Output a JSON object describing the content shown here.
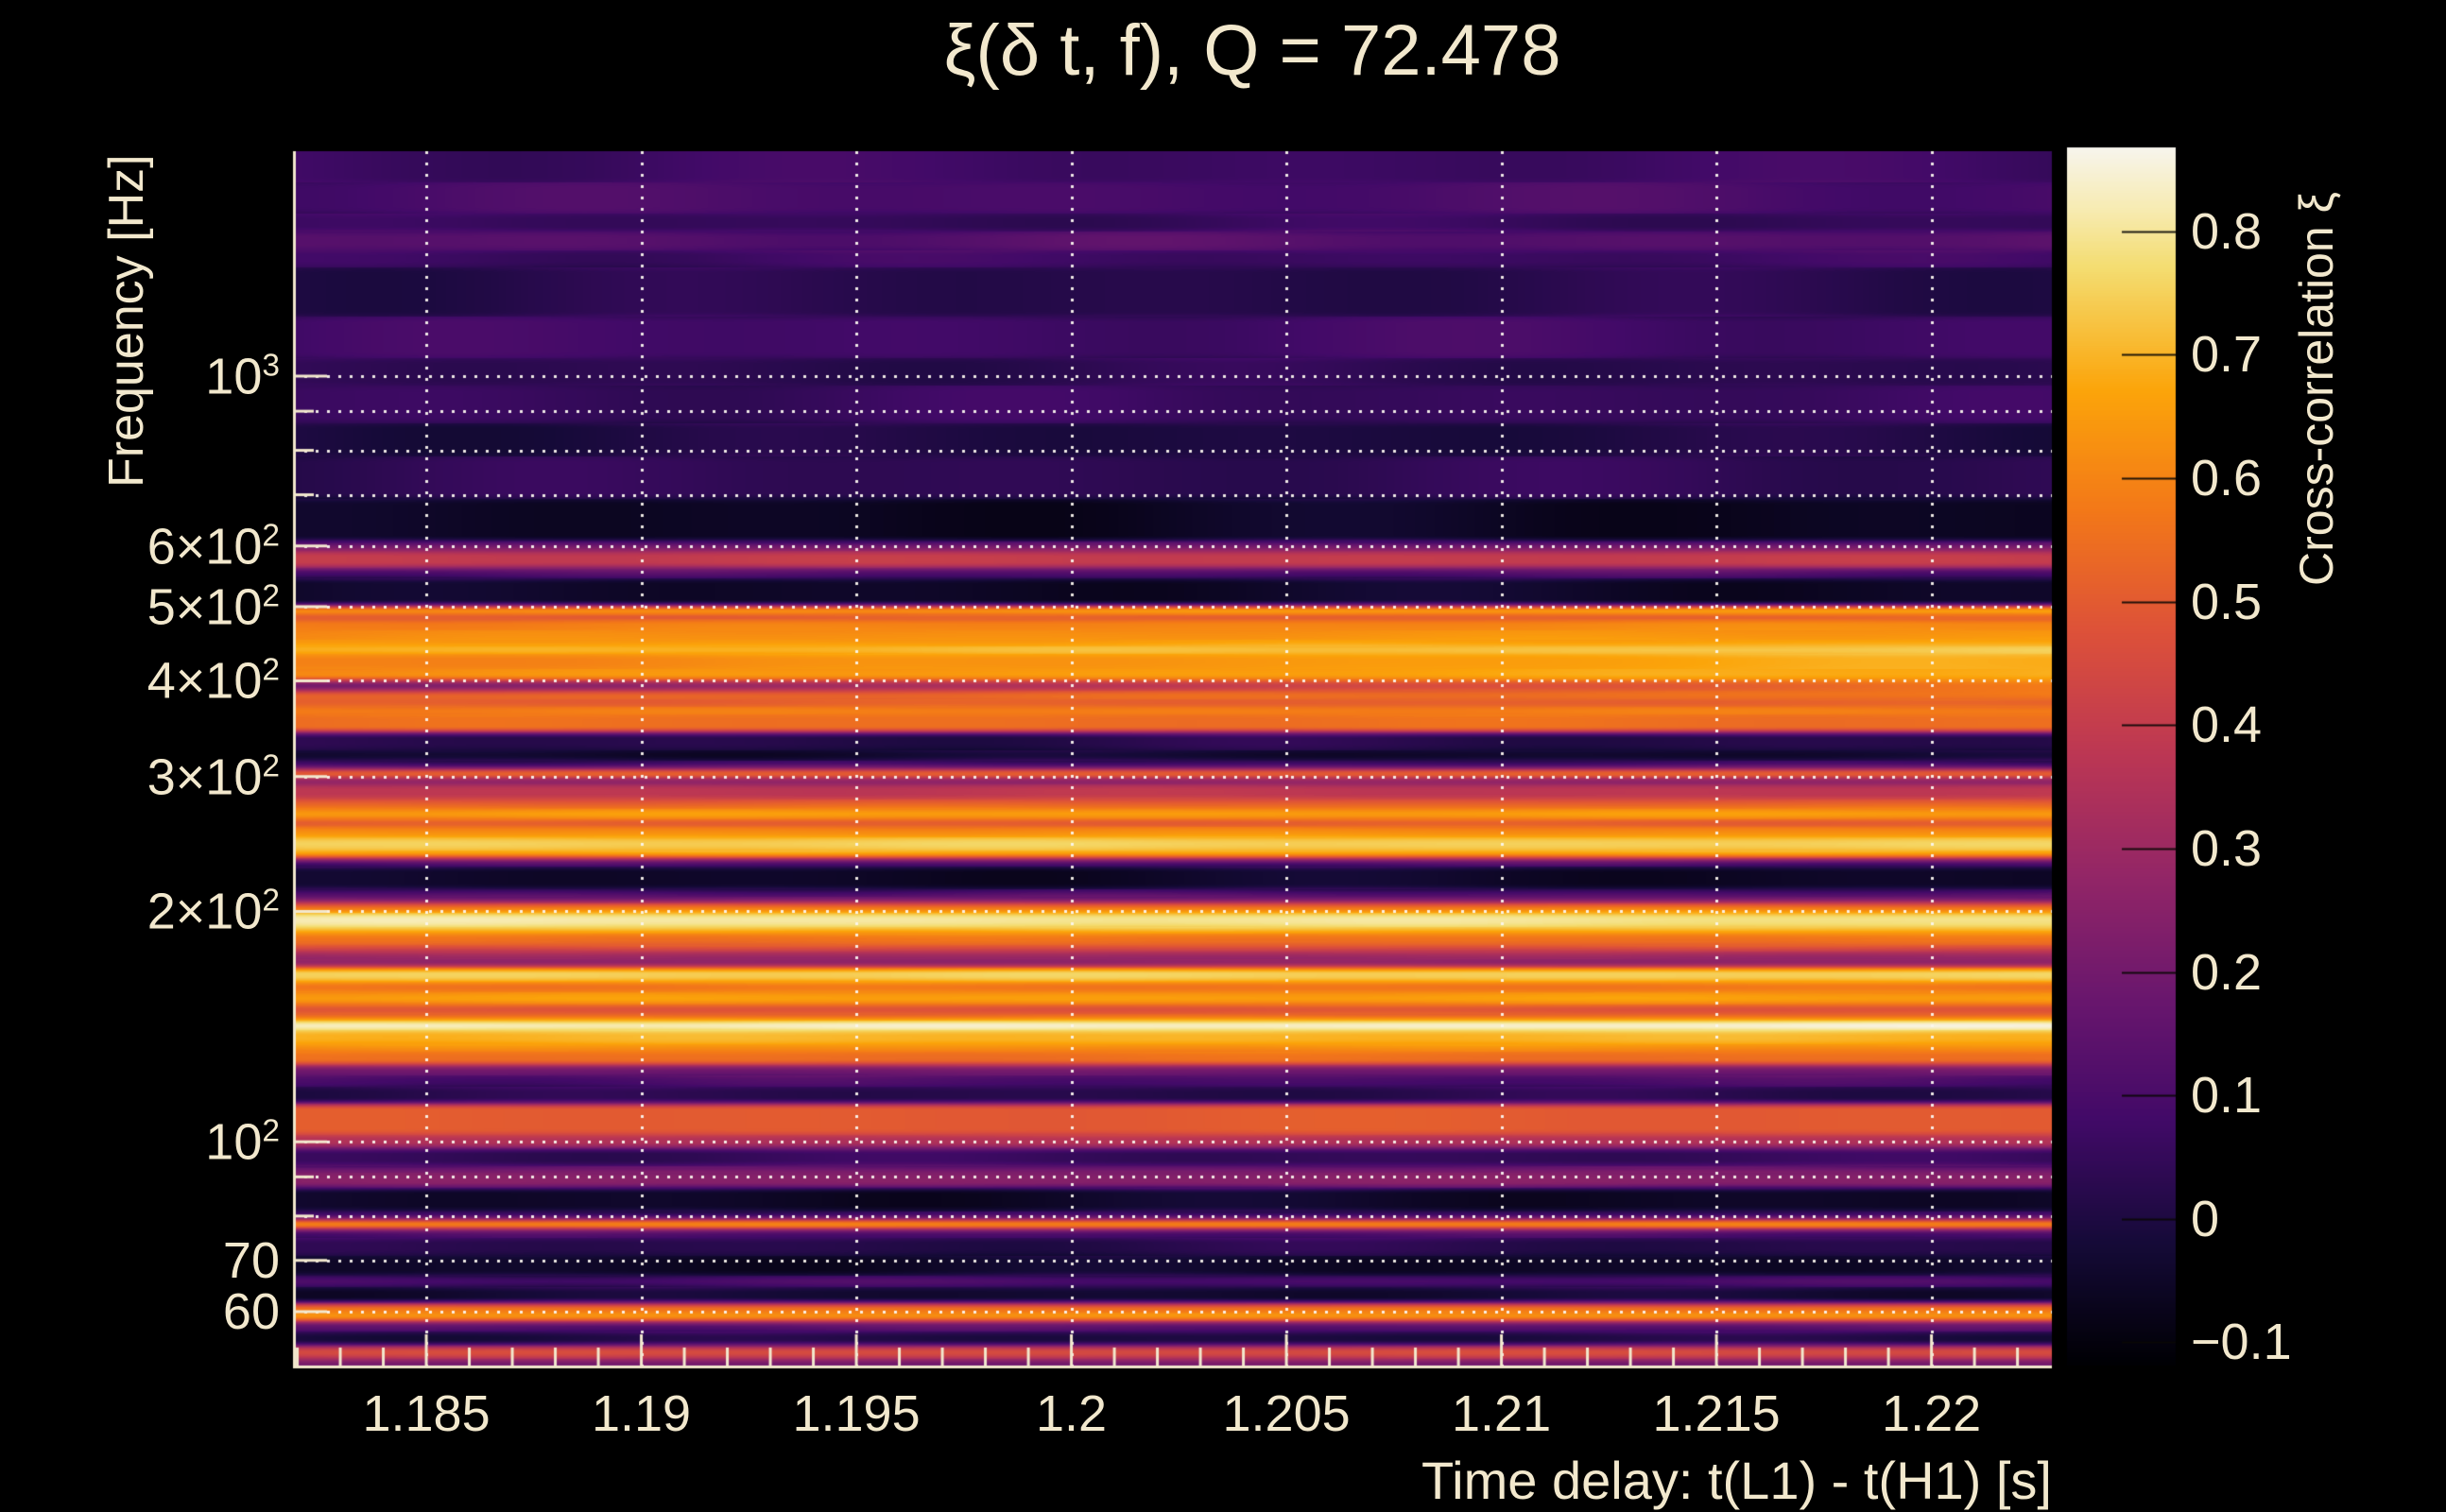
{
  "colors": {
    "background": "#000000",
    "text": "#f2e8cd",
    "grid_dotted": "#faf6ee",
    "colormap_low": "#000004",
    "colormap_mid": "#dd513a",
    "colormap_high": "#f7f5ee"
  },
  "chart_data": {
    "type": "heatmap",
    "title": "ξ(δ t, f), Q = 72.478",
    "q_value": 72.478,
    "xlabel": "Time delay: t(L1) - t(H1) [s]",
    "ylabel": "Frequency [Hz]",
    "colorbar_label": "Cross-correlation ξ",
    "x_range": [
      1.1819,
      1.2228
    ],
    "y_range_hz": [
      50.6,
      1967
    ],
    "y_scale": "log",
    "x_scale": "linear",
    "grid": "dotted",
    "color_range": [
      -0.118,
      0.868
    ],
    "colormap": "inferno-white-top",
    "x_ticks": [
      {
        "v": 1.185,
        "label": "1.185"
      },
      {
        "v": 1.19,
        "label": "1.19"
      },
      {
        "v": 1.195,
        "label": "1.195"
      },
      {
        "v": 1.2,
        "label": "1.2"
      },
      {
        "v": 1.205,
        "label": "1.205"
      },
      {
        "v": 1.21,
        "label": "1.21"
      },
      {
        "v": 1.215,
        "label": "1.215"
      },
      {
        "v": 1.22,
        "label": "1.22"
      }
    ],
    "x_minor_step": 0.001,
    "y_ticks": [
      {
        "v": 1000,
        "label": "10",
        "sup": "3"
      },
      {
        "v": 600,
        "label": "6×10",
        "sup": "2"
      },
      {
        "v": 500,
        "label": "5×10",
        "sup": "2"
      },
      {
        "v": 400,
        "label": "4×10",
        "sup": "2"
      },
      {
        "v": 300,
        "label": "3×10",
        "sup": "2"
      },
      {
        "v": 200,
        "label": "2×10",
        "sup": "2"
      },
      {
        "v": 100,
        "label": "10",
        "sup": "2"
      },
      {
        "v": 70,
        "label": "70",
        "sup": ""
      },
      {
        "v": 60,
        "label": "60",
        "sup": ""
      }
    ],
    "y_grid_hz": [
      60,
      70,
      80,
      90,
      100,
      200,
      300,
      400,
      500,
      600,
      700,
      800,
      900,
      1000
    ],
    "colorbar_ticks": [
      {
        "v": 0.8,
        "label": "0.8"
      },
      {
        "v": 0.7,
        "label": "0.7"
      },
      {
        "v": 0.6,
        "label": "0.6"
      },
      {
        "v": 0.5,
        "label": "0.5"
      },
      {
        "v": 0.4,
        "label": "0.4"
      },
      {
        "v": 0.3,
        "label": "0.3"
      },
      {
        "v": 0.2,
        "label": "0.2"
      },
      {
        "v": 0.1,
        "label": "0.1"
      },
      {
        "v": 0,
        "label": "0"
      },
      {
        "v": -0.1,
        "label": "−0.1"
      }
    ],
    "bands_format": [
      "f_high_hz",
      "f_low_hz",
      "xi",
      "x_gradient"
    ],
    "bands": [
      [
        1967,
        1790,
        0.07,
        0
      ],
      [
        1790,
        1630,
        0.1,
        0
      ],
      [
        1630,
        1545,
        0.05,
        0
      ],
      [
        1545,
        1460,
        0.13,
        0
      ],
      [
        1460,
        1387,
        0.07,
        0
      ],
      [
        1387,
        1196,
        0.02,
        0
      ],
      [
        1196,
        1056,
        0.08,
        0
      ],
      [
        1056,
        972,
        0.03,
        0
      ],
      [
        972,
        867,
        0.06,
        0
      ],
      [
        867,
        785,
        0.0,
        0
      ],
      [
        785,
        691,
        0.04,
        0
      ],
      [
        691,
        608,
        -0.06,
        0
      ],
      [
        608,
        591,
        0.2,
        0
      ],
      [
        591,
        562,
        0.4,
        0
      ],
      [
        562,
        545,
        0.12,
        0
      ],
      [
        545,
        502,
        -0.05,
        0
      ],
      [
        502,
        487,
        0.66,
        0.06
      ],
      [
        487,
        482,
        0.4,
        0
      ],
      [
        482,
        466,
        0.6,
        0.03
      ],
      [
        466,
        452,
        0.63,
        0.03
      ],
      [
        452,
        444,
        0.66,
        0.04
      ],
      [
        444,
        434,
        0.73,
        0.05
      ],
      [
        434,
        414,
        0.64,
        0.1
      ],
      [
        414,
        401,
        0.66,
        0.07
      ],
      [
        401,
        388,
        0.38,
        0.4
      ],
      [
        388,
        378,
        0.55,
        0.05
      ],
      [
        378,
        370,
        0.5,
        0
      ],
      [
        370,
        362,
        0.6,
        0
      ],
      [
        362,
        343,
        0.55,
        0
      ],
      [
        343,
        325,
        0.02,
        0
      ],
      [
        325,
        315,
        -0.04,
        0
      ],
      [
        315,
        307,
        0.1,
        0
      ],
      [
        307,
        299,
        0.55,
        0
      ],
      [
        299,
        293,
        0.22,
        0
      ],
      [
        293,
        280,
        0.38,
        0
      ],
      [
        280,
        272,
        0.52,
        0
      ],
      [
        272,
        264,
        0.66,
        0
      ],
      [
        264,
        258,
        0.48,
        0
      ],
      [
        258,
        250,
        0.62,
        0
      ],
      [
        250,
        240,
        0.75,
        0
      ],
      [
        240,
        235,
        0.66,
        0
      ],
      [
        235,
        229,
        0.15,
        0
      ],
      [
        229,
        214,
        -0.05,
        0
      ],
      [
        214,
        209,
        0.1,
        0
      ],
      [
        209,
        205,
        0.22,
        0
      ],
      [
        205,
        199,
        0.58,
        0
      ],
      [
        199,
        191,
        0.8,
        -0.03
      ],
      [
        191,
        187,
        0.7,
        0
      ],
      [
        187,
        181,
        0.56,
        0
      ],
      [
        181,
        177,
        0.46,
        0
      ],
      [
        177,
        173,
        0.3,
        0
      ],
      [
        173,
        169,
        0.26,
        0
      ],
      [
        169,
        162,
        0.75,
        0
      ],
      [
        162,
        157,
        0.56,
        0
      ],
      [
        157,
        151,
        0.66,
        0
      ],
      [
        151,
        147,
        0.47,
        0
      ],
      [
        147,
        144,
        0.56,
        0
      ],
      [
        144,
        140,
        0.85,
        0.03
      ],
      [
        140,
        134,
        0.7,
        0
      ],
      [
        134,
        131,
        0.62,
        0
      ],
      [
        131,
        126,
        0.55,
        0
      ],
      [
        126,
        122,
        0.2,
        0
      ],
      [
        122,
        118,
        0.1,
        0
      ],
      [
        118,
        112,
        0.02,
        0
      ],
      [
        112,
        102,
        0.5,
        0
      ],
      [
        102,
        98,
        0.35,
        0
      ],
      [
        98,
        93,
        0.05,
        0
      ],
      [
        93,
        91,
        0.2,
        0
      ],
      [
        91,
        87,
        0.25,
        0
      ],
      [
        87,
        81,
        -0.05,
        0
      ],
      [
        81,
        79,
        0.1,
        0
      ],
      [
        79,
        77,
        0.65,
        0
      ],
      [
        77,
        75,
        0.12,
        0
      ],
      [
        75,
        71,
        0.02,
        0
      ],
      [
        71,
        66.8,
        -0.05,
        0
      ],
      [
        66.8,
        64.6,
        0.1,
        0
      ],
      [
        64.6,
        61.6,
        -0.03,
        0
      ],
      [
        61.6,
        59.9,
        0.55,
        0
      ],
      [
        59.9,
        58.3,
        0.65,
        0
      ],
      [
        58.3,
        56.5,
        0.15,
        0
      ],
      [
        56.5,
        54.2,
        0.0,
        0
      ],
      [
        54.2,
        52.1,
        0.45,
        0
      ],
      [
        52.1,
        50.6,
        0.2,
        0
      ]
    ]
  }
}
